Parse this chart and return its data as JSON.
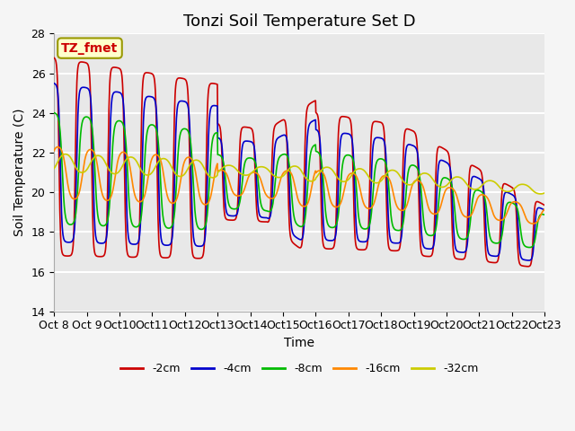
{
  "title": "Tonzi Soil Temperature Set D",
  "xlabel": "Time",
  "ylabel": "Soil Temperature (C)",
  "ylim": [
    14,
    28
  ],
  "yticks": [
    14,
    16,
    18,
    20,
    22,
    24,
    26,
    28
  ],
  "x_tick_labels": [
    "Oct 8",
    "Oct 9",
    "Oct 10",
    "Oct 11",
    "Oct 12",
    "Oct 13",
    "Oct 14",
    "Oct 15",
    "Oct 16",
    "Oct 17",
    "Oct 18",
    "Oct 19",
    "Oct 20",
    "Oct 21",
    "Oct 22",
    "Oct 23"
  ],
  "legend_labels": [
    "-2cm",
    "-4cm",
    "-8cm",
    "-16cm",
    "-32cm"
  ],
  "colors": [
    "#cc0000",
    "#0000cc",
    "#00bb00",
    "#ff8800",
    "#cccc00"
  ],
  "annotation_text": "TZ_fmet",
  "annotation_fg": "#cc0000",
  "annotation_bg": "#ffffcc",
  "annotation_border": "#999900",
  "plot_bg": "#e8e8e8",
  "fig_bg": "#f5f5f5",
  "grid_color": "#ffffff",
  "title_fontsize": 13,
  "axis_fontsize": 9,
  "label_fontsize": 10,
  "legend_fontsize": 9,
  "linewidth": 1.2,
  "n_days": 15,
  "pts_per_day": 96
}
